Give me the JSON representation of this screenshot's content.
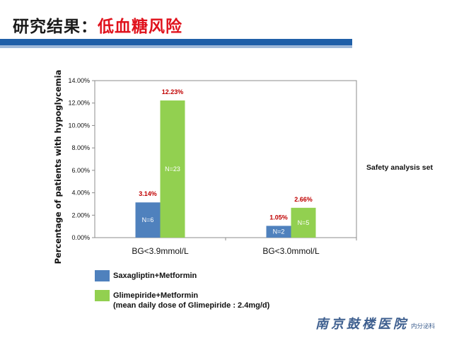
{
  "header": {
    "title_prefix": "研究结果：",
    "title_highlight": "低血糖风险"
  },
  "chart_data": {
    "type": "bar",
    "ylabel": "Percentage of patients with hypoglycemia",
    "xlabel": "",
    "ylim": [
      0,
      14
    ],
    "yticks": [
      "0.00%",
      "2.00%",
      "4.00%",
      "6.00%",
      "8.00%",
      "10.00%",
      "12.00%",
      "14.00%"
    ],
    "categories": [
      "BG<3.9mmol/L",
      "BG<3.0mmol/L"
    ],
    "series": [
      {
        "name": "Saxagliptin+Metformin",
        "color": "#4f81bd",
        "values": [
          3.14,
          1.05
        ],
        "labels": [
          "3.14%",
          "1.05%"
        ],
        "n_labels": [
          "N=6",
          "N=2"
        ]
      },
      {
        "name": "Glimepiride+Metformin",
        "color": "#92d050",
        "values": [
          12.23,
          2.66
        ],
        "labels": [
          "12.23%",
          "2.66%"
        ],
        "n_labels": [
          "N=23",
          "N=5"
        ]
      }
    ],
    "value_label_color": "#c00000",
    "grid": false,
    "legend": "bottom-left"
  },
  "side_note": "Safety analysis set",
  "legend": {
    "items": [
      {
        "label": "Saxagliptin+Metformin",
        "sub": ""
      },
      {
        "label": "Glimepiride+Metformin",
        "sub": "(mean daily dose of Glimepiride : 2.4mg/d)"
      }
    ]
  },
  "logo": {
    "main": "南京鼓楼医院",
    "sub": "内分泌科"
  }
}
